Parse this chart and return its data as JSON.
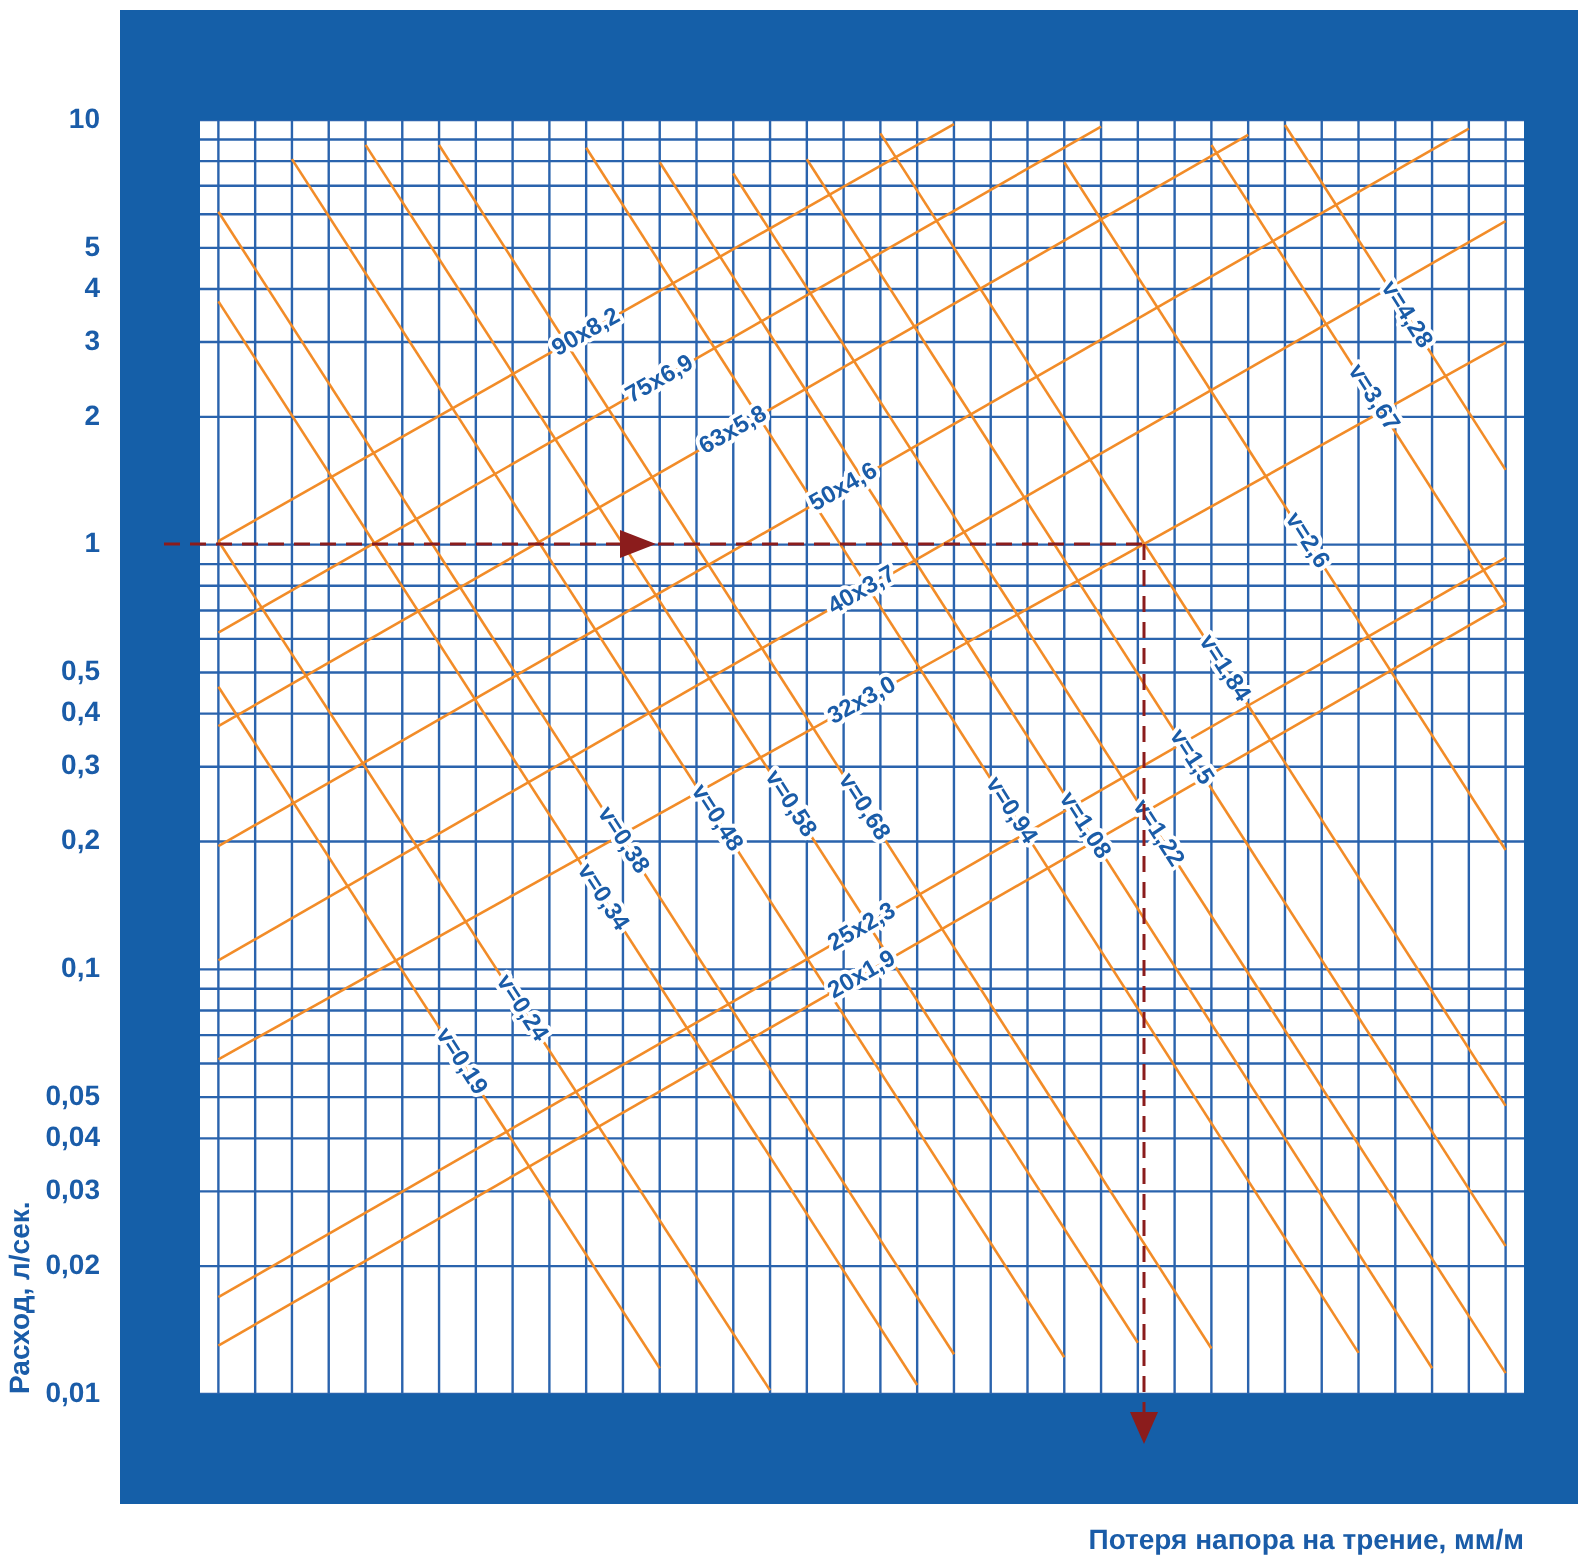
{
  "chart_data": {
    "type": "line",
    "xlabel": "Потеря напора на трение, мм/м",
    "ylabel": "Расход, л/сек.",
    "categories": [
      null,
      null,
      null,
      null,
      null,
      null,
      null,
      null,
      null,
      null,
      null,
      null,
      null,
      null,
      null,
      null,
      null,
      null,
      null,
      null,
      null,
      null,
      null,
      null,
      null,
      null,
      null,
      null,
      null,
      null,
      null,
      null,
      null,
      null,
      null,
      null
    ],
    "log": "y",
    "ylim": [
      0.01,
      10
    ],
    "yticks": [
      {
        "value": 0.01,
        "label": "0,01"
      },
      {
        "value": 0.02,
        "label": "0,02"
      },
      {
        "value": 0.03,
        "label": "0,03"
      },
      {
        "value": 0.04,
        "label": "0,04"
      },
      {
        "value": 0.05,
        "label": "0,05"
      },
      {
        "value": 0.06,
        "label": null
      },
      {
        "value": 0.07,
        "label": null
      },
      {
        "value": 0.08,
        "label": null
      },
      {
        "value": 0.09,
        "label": null
      },
      {
        "value": 0.1,
        "label": "0,1"
      },
      {
        "value": 0.2,
        "label": "0,2"
      },
      {
        "value": 0.3,
        "label": "0,3"
      },
      {
        "value": 0.4,
        "label": "0,4"
      },
      {
        "value": 0.5,
        "label": "0,5"
      },
      {
        "value": 0.6,
        "label": null
      },
      {
        "value": 0.7,
        "label": null
      },
      {
        "value": 0.8,
        "label": null
      },
      {
        "value": 0.9,
        "label": null
      },
      1,
      2,
      3,
      4,
      5,
      {
        "value": 6,
        "label": null
      },
      {
        "value": 7,
        "label": null
      },
      {
        "value": 8,
        "label": null
      },
      {
        "value": 9,
        "label": null
      },
      10
    ],
    "tick_labels": "y",
    "grid": true,
    "marker": "none",
    "series": [
      {
        "name": "90x8,2",
        "color": "#f28c28",
        "values": [
          1.02,
          null,
          null,
          null,
          null,
          null,
          null,
          null,
          null,
          null,
          null,
          null,
          null,
          null,
          null,
          null,
          null,
          null,
          null,
          null,
          9.78,
          null,
          null,
          null,
          null,
          null,
          null,
          null,
          null,
          null,
          null,
          null,
          null,
          null,
          null,
          null
        ]
      },
      {
        "name": "75x6,9",
        "color": "#f28c28",
        "values": [
          0.621,
          null,
          null,
          null,
          null,
          null,
          null,
          null,
          null,
          null,
          null,
          null,
          null,
          null,
          null,
          null,
          null,
          null,
          null,
          null,
          null,
          null,
          null,
          null,
          9.65,
          null,
          null,
          null,
          null,
          null,
          null,
          null,
          null,
          null,
          null,
          null
        ]
      },
      {
        "name": "63x5,8",
        "color": "#f28c28",
        "values": [
          0.374,
          null,
          null,
          null,
          null,
          null,
          null,
          null,
          null,
          null,
          null,
          null,
          null,
          null,
          null,
          null,
          null,
          null,
          null,
          null,
          null,
          null,
          null,
          null,
          null,
          null,
          null,
          null,
          9.22,
          null,
          null,
          null,
          null,
          null,
          null,
          null
        ]
      },
      {
        "name": "50x4,6",
        "color": "#f28c28",
        "values": [
          0.195,
          null,
          null,
          null,
          null,
          null,
          null,
          null,
          null,
          null,
          null,
          null,
          null,
          null,
          null,
          null,
          null,
          null,
          null,
          null,
          null,
          null,
          null,
          null,
          null,
          null,
          null,
          null,
          null,
          null,
          null,
          null,
          null,
          null,
          9.54,
          null
        ]
      },
      {
        "name": "40x3,7",
        "color": "#f28c28",
        "values": [
          0.105,
          null,
          null,
          null,
          null,
          null,
          null,
          null,
          null,
          null,
          null,
          null,
          null,
          null,
          null,
          null,
          null,
          null,
          null,
          null,
          null,
          null,
          null,
          null,
          null,
          null,
          null,
          null,
          null,
          null,
          null,
          null,
          null,
          null,
          null,
          5.78
        ]
      },
      {
        "name": "32x3,0",
        "color": "#f28c28",
        "values": [
          0.0614,
          null,
          null,
          null,
          null,
          null,
          null,
          null,
          null,
          null,
          null,
          null,
          null,
          null,
          null,
          null,
          null,
          null,
          null,
          null,
          null,
          null,
          null,
          null,
          null,
          null,
          null,
          null,
          null,
          null,
          null,
          null,
          null,
          null,
          null,
          2.99
        ]
      },
      {
        "name": "25x2,3",
        "color": "#f28c28",
        "values": [
          0.0169,
          null,
          null,
          null,
          null,
          null,
          null,
          null,
          null,
          null,
          null,
          null,
          null,
          null,
          null,
          null,
          null,
          null,
          null,
          null,
          null,
          null,
          null,
          null,
          null,
          null,
          null,
          null,
          null,
          null,
          null,
          null,
          null,
          null,
          null,
          0.932
        ]
      },
      {
        "name": "20x1,9",
        "color": "#f28c28",
        "values": [
          0.013,
          null,
          null,
          null,
          null,
          null,
          null,
          null,
          null,
          null,
          null,
          null,
          null,
          null,
          null,
          null,
          null,
          null,
          null,
          null,
          null,
          null,
          null,
          null,
          null,
          null,
          null,
          null,
          null,
          null,
          null,
          null,
          null,
          null,
          null,
          0.723
        ]
      },
      {
        "name": "v=0,19",
        "color": "#f28c28",
        "values": [
          0.463,
          null,
          null,
          null,
          null,
          null,
          null,
          null,
          null,
          null,
          null,
          null,
          0.0115,
          null,
          null,
          null,
          null,
          null,
          null,
          null,
          null,
          null,
          null,
          null,
          null,
          null,
          null,
          null,
          null,
          null,
          null,
          null,
          null,
          null,
          null,
          null
        ]
      },
      {
        "name": "v=0,24",
        "color": "#f28c28",
        "values": [
          1.02,
          null,
          null,
          null,
          null,
          null,
          null,
          null,
          null,
          null,
          null,
          null,
          null,
          null,
          null,
          0.0102,
          null,
          null,
          null,
          null,
          null,
          null,
          null,
          null,
          null,
          null,
          null,
          null,
          null,
          null,
          null,
          null,
          null,
          null,
          null,
          null
        ]
      },
      {
        "name": "v=0,34",
        "color": "#f28c28",
        "values": [
          3.74,
          null,
          null,
          null,
          null,
          null,
          null,
          null,
          null,
          null,
          null,
          null,
          null,
          null,
          null,
          null,
          null,
          null,
          null,
          0.0105,
          null,
          null,
          null,
          null,
          null,
          null,
          null,
          null,
          null,
          null,
          null,
          null,
          null,
          null,
          null,
          null
        ]
      },
      {
        "name": "v=0,38",
        "color": "#f28c28",
        "values": [
          6.08,
          null,
          null,
          null,
          null,
          null,
          null,
          null,
          null,
          null,
          null,
          null,
          null,
          null,
          null,
          null,
          null,
          null,
          null,
          null,
          0.0124,
          null,
          null,
          null,
          null,
          null,
          null,
          null,
          null,
          null,
          null,
          null,
          null,
          null,
          null,
          null
        ]
      },
      {
        "name": "v=0,48",
        "color": "#f28c28",
        "values": [
          null,
          null,
          8.09,
          null,
          null,
          null,
          null,
          null,
          null,
          null,
          null,
          null,
          null,
          null,
          null,
          null,
          null,
          null,
          null,
          null,
          null,
          null,
          null,
          0.0122,
          null,
          null,
          null,
          null,
          null,
          null,
          null,
          null,
          null,
          null,
          null,
          null
        ]
      },
      {
        "name": "v=0,58",
        "color": "#f28c28",
        "values": [
          null,
          null,
          null,
          null,
          8.74,
          null,
          null,
          null,
          null,
          null,
          null,
          null,
          null,
          null,
          null,
          null,
          null,
          null,
          null,
          null,
          null,
          null,
          null,
          null,
          null,
          0.0132,
          null,
          null,
          null,
          null,
          null,
          null,
          null,
          null,
          null,
          null
        ]
      },
      {
        "name": "v=0,68",
        "color": "#f28c28",
        "values": [
          null,
          null,
          null,
          null,
          null,
          null,
          8.73,
          null,
          null,
          null,
          null,
          null,
          null,
          null,
          null,
          null,
          null,
          null,
          null,
          null,
          null,
          null,
          null,
          null,
          null,
          null,
          null,
          0.0128,
          null,
          null,
          null,
          null,
          null,
          null,
          null,
          null
        ]
      },
      {
        "name": "v=0,94",
        "color": "#f28c28",
        "values": [
          null,
          null,
          null,
          null,
          null,
          null,
          null,
          null,
          null,
          null,
          8.6,
          null,
          null,
          null,
          null,
          null,
          null,
          null,
          null,
          null,
          null,
          null,
          null,
          null,
          null,
          null,
          null,
          null,
          null,
          null,
          null,
          0.0125,
          null,
          null,
          null,
          null
        ]
      },
      {
        "name": "v=1,08",
        "color": "#f28c28",
        "values": [
          null,
          null,
          null,
          null,
          null,
          null,
          null,
          null,
          null,
          null,
          null,
          null,
          7.95,
          null,
          null,
          null,
          null,
          null,
          null,
          null,
          null,
          null,
          null,
          null,
          null,
          null,
          null,
          null,
          null,
          null,
          null,
          null,
          null,
          0.0115,
          null,
          null
        ]
      },
      {
        "name": "v=1,22",
        "color": "#f28c28",
        "values": [
          null,
          null,
          null,
          null,
          null,
          null,
          null,
          null,
          null,
          null,
          null,
          null,
          null,
          null,
          7.48,
          null,
          null,
          null,
          null,
          null,
          null,
          null,
          null,
          null,
          null,
          null,
          null,
          null,
          null,
          null,
          null,
          null,
          null,
          null,
          null,
          0.0112
        ]
      },
      {
        "name": "v=1,5",
        "color": "#f28c28",
        "values": [
          null,
          null,
          null,
          null,
          null,
          null,
          null,
          null,
          null,
          null,
          null,
          null,
          null,
          null,
          null,
          null,
          8.08,
          null,
          null,
          null,
          null,
          null,
          null,
          null,
          null,
          null,
          null,
          null,
          null,
          null,
          null,
          null,
          null,
          null,
          null,
          0.0223
        ]
      },
      {
        "name": "v=1,84",
        "color": "#f28c28",
        "values": [
          null,
          null,
          null,
          null,
          null,
          null,
          null,
          null,
          null,
          null,
          null,
          null,
          null,
          null,
          null,
          null,
          null,
          null,
          9.3,
          null,
          null,
          null,
          null,
          null,
          null,
          null,
          null,
          null,
          null,
          null,
          null,
          null,
          null,
          null,
          null,
          0.0477
        ]
      },
      {
        "name": "v=2,6",
        "color": "#f28c28",
        "values": [
          null,
          null,
          null,
          null,
          null,
          null,
          null,
          null,
          null,
          null,
          null,
          null,
          null,
          null,
          null,
          null,
          null,
          null,
          null,
          null,
          null,
          null,
          null,
          7.95,
          null,
          null,
          null,
          null,
          null,
          null,
          null,
          null,
          null,
          null,
          null,
          0.191
        ]
      },
      {
        "name": "v=3,67",
        "color": "#f28c28",
        "values": [
          null,
          null,
          null,
          null,
          null,
          null,
          null,
          null,
          null,
          null,
          null,
          null,
          null,
          null,
          null,
          null,
          null,
          null,
          null,
          null,
          null,
          null,
          null,
          null,
          null,
          null,
          null,
          8.73,
          null,
          null,
          null,
          null,
          null,
          null,
          null,
          0.723
        ]
      },
      {
        "name": "v=4,28",
        "color": "#f28c28",
        "values": [
          null,
          null,
          null,
          null,
          null,
          null,
          null,
          null,
          null,
          null,
          null,
          null,
          null,
          null,
          null,
          null,
          null,
          null,
          null,
          null,
          null,
          null,
          null,
          null,
          null,
          null,
          null,
          null,
          null,
          9.73,
          null,
          null,
          null,
          null,
          null,
          1.5
        ]
      }
    ]
  }
}
